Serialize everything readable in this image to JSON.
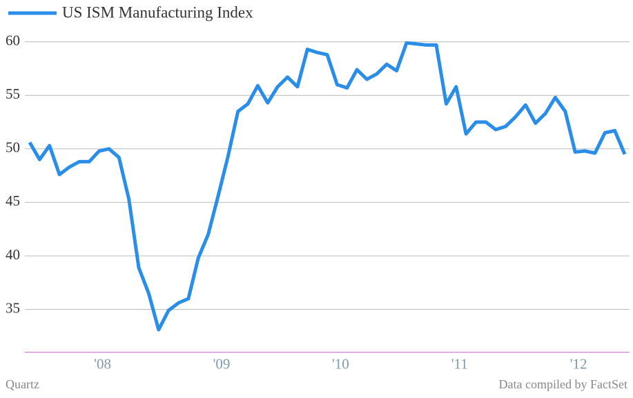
{
  "chart_data": {
    "type": "line",
    "categories": [
      null,
      null,
      null,
      null,
      null,
      null,
      null,
      "'08",
      null,
      null,
      null,
      null,
      null,
      null,
      null,
      null,
      null,
      null,
      null,
      "'09",
      null,
      null,
      null,
      null,
      null,
      null,
      null,
      null,
      null,
      null,
      null,
      "'10",
      null,
      null,
      null,
      null,
      null,
      null,
      null,
      null,
      null,
      null,
      null,
      "'11",
      null,
      null,
      null,
      null,
      null,
      null,
      null,
      null,
      null,
      null,
      null,
      "'12",
      null,
      null,
      null,
      null,
      null
    ],
    "series": [
      {
        "name": "US ISM Manufacturing Index",
        "color": "#2a8de8",
        "values": [
          50.6,
          49.0,
          50.3,
          47.6,
          48.3,
          48.8,
          48.8,
          49.8,
          50.0,
          49.2,
          45.3,
          38.9,
          36.5,
          33.1,
          34.9,
          35.6,
          36.0,
          39.8,
          42.0,
          45.6,
          49.3,
          53.5,
          54.2,
          55.9,
          54.3,
          55.8,
          56.7,
          55.8,
          59.3,
          59.0,
          58.8,
          56.0,
          55.7,
          57.4,
          56.5,
          57.0,
          57.9,
          57.3,
          59.9,
          59.8,
          59.7,
          59.7,
          54.2,
          55.8,
          51.4,
          52.5,
          52.5,
          51.8,
          52.1,
          53.0,
          54.1,
          52.4,
          53.3,
          54.8,
          53.5,
          49.7,
          49.8,
          49.6,
          51.5,
          51.7,
          49.5
        ]
      }
    ],
    "ylim": [
      31,
      62
    ],
    "yticks": [
      35,
      40,
      45,
      50,
      55,
      60
    ],
    "grid": true,
    "credit": "Quartz",
    "source": "Data compiled by FactSet"
  }
}
